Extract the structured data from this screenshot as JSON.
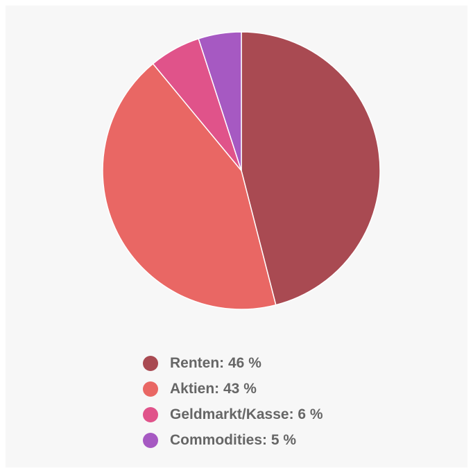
{
  "chart_data": {
    "type": "pie",
    "categories": [
      "Renten",
      "Aktien",
      "Geldmarkt/Kasse",
      "Commodities"
    ],
    "values": [
      46,
      43,
      6,
      5
    ],
    "unit": "%",
    "colors": [
      "#a94a52",
      "#e96764",
      "#e0538a",
      "#a659c2"
    ],
    "legend_position": "bottom",
    "legend_labels": [
      "Renten: 46 %",
      "Aktien: 43 %",
      "Geldmarkt/Kasse: 6 %",
      "Commodities: 5 %"
    ]
  }
}
